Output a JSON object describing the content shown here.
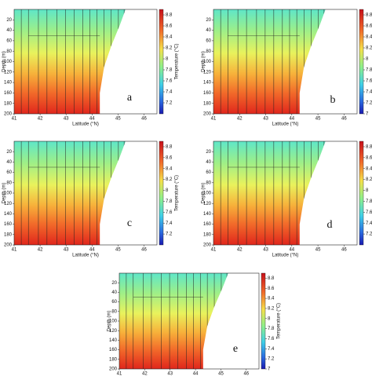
{
  "chart_data": [
    {
      "type": "section",
      "label": "a",
      "ylabel": "Depth (m)",
      "xlabel": "Latitude (°N)",
      "colorbar_label": "Temperature (°C)",
      "xlim": [
        41,
        46.5
      ],
      "xticks": [
        41,
        42,
        43,
        44,
        45,
        46
      ],
      "ylim": [
        0,
        200
      ],
      "yticks": [
        20,
        40,
        60,
        80,
        100,
        120,
        140,
        160,
        180,
        200
      ],
      "clim": [
        7,
        8.9
      ],
      "cticks": [
        7.2,
        7.4,
        7.6,
        7.8,
        8,
        8.2,
        8.4,
        8.6,
        8.8
      ]
    },
    {
      "type": "section",
      "label": "b",
      "ylabel": "Depth (m)",
      "xlabel": "Latitude (°N)",
      "colorbar_label": "Temperature (°C)",
      "xlim": [
        41,
        46.5
      ],
      "xticks": [
        41,
        42,
        43,
        44,
        45,
        46
      ],
      "ylim": [
        0,
        200
      ],
      "yticks": [
        20,
        40,
        60,
        80,
        100,
        120,
        140,
        160,
        180,
        200
      ],
      "clim": [
        7,
        8.9
      ],
      "cticks": [
        7,
        7.2,
        7.4,
        7.6,
        7.8,
        8,
        8.2,
        8.4,
        8.6,
        8.8
      ]
    },
    {
      "type": "section",
      "label": "c",
      "ylabel": "Depth (m)",
      "xlabel": "Latitude (°N)",
      "colorbar_label": "Temperature (°C)",
      "xlim": [
        41,
        46.5
      ],
      "xticks": [
        41,
        42,
        43,
        44,
        45,
        46
      ],
      "ylim": [
        0,
        200
      ],
      "yticks": [
        20,
        40,
        60,
        80,
        100,
        120,
        140,
        160,
        180,
        200
      ],
      "clim": [
        7,
        8.9
      ],
      "cticks": [
        7.2,
        7.4,
        7.6,
        7.8,
        8,
        8.2,
        8.4,
        8.6,
        8.8
      ]
    },
    {
      "type": "section",
      "label": "d",
      "ylabel": "Depth (m)",
      "xlabel": "Latitude (°N)",
      "colorbar_label": "Temperature (°C)",
      "xlim": [
        41,
        46.5
      ],
      "xticks": [
        41,
        42,
        43,
        44,
        45,
        46
      ],
      "ylim": [
        0,
        200
      ],
      "yticks": [
        20,
        40,
        60,
        80,
        100,
        120,
        140,
        160,
        180,
        200
      ],
      "clim": [
        7,
        8.9
      ],
      "cticks": [
        7.2,
        7.4,
        7.6,
        7.8,
        8,
        8.2,
        8.4,
        8.6,
        8.8
      ]
    },
    {
      "type": "section",
      "label": "e",
      "ylabel": "Depth (m)",
      "xlabel": "Latitude (°N)",
      "colorbar_label": "Temperature (°C)",
      "xlim": [
        41,
        46.5
      ],
      "xticks": [
        41,
        42,
        43,
        44,
        45,
        46
      ],
      "ylim": [
        0,
        200
      ],
      "yticks": [
        20,
        40,
        60,
        80,
        100,
        120,
        140,
        160,
        180,
        200
      ],
      "clim": [
        7,
        8.9
      ],
      "cticks": [
        7,
        7.2,
        7.4,
        7.6,
        7.8,
        8,
        8.2,
        8.4,
        8.6,
        8.8
      ]
    }
  ]
}
